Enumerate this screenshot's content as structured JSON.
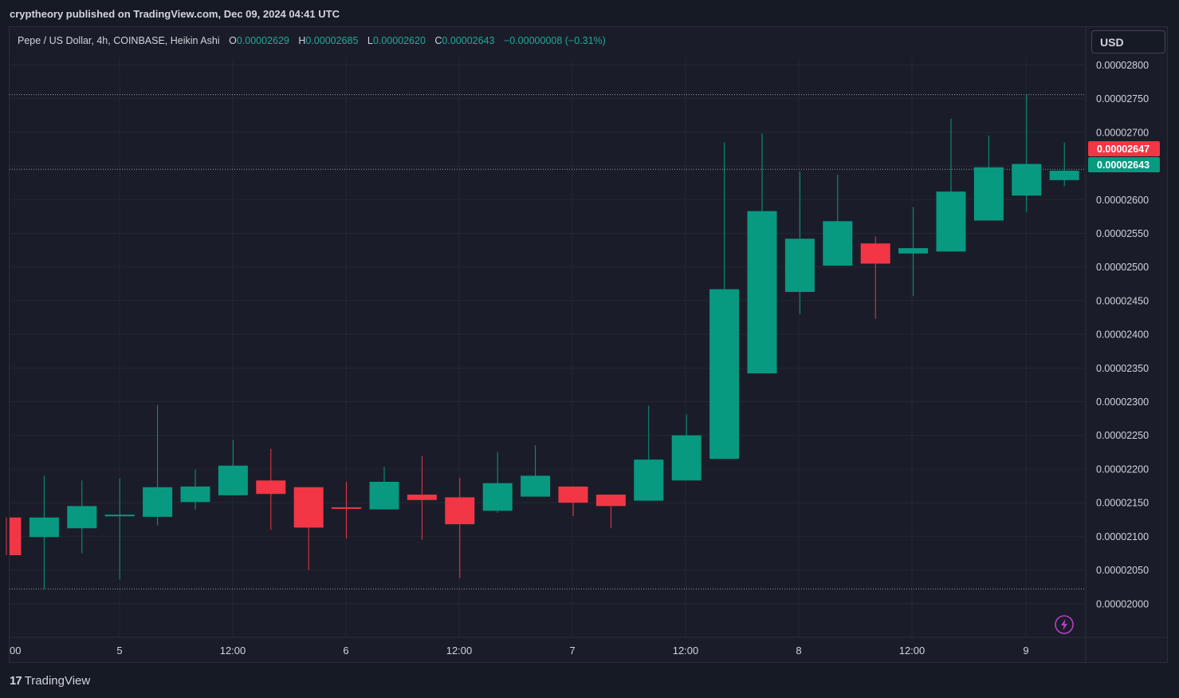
{
  "header": {
    "publisher_line": "cryptheory published on TradingView.com, Dec 09, 2024 04:41 UTC"
  },
  "legend": {
    "symbol": "Pepe / US Dollar, 4h, COINBASE, Heikin Ashi",
    "open_label": "O",
    "open_value": "0.00002629",
    "high_label": "H",
    "high_value": "0.00002685",
    "low_label": "L",
    "low_value": "0.00002620",
    "close_label": "C",
    "close_value": "0.00002643",
    "change": "−0.00000008 (−0.31%)"
  },
  "currency_button": {
    "label": "USD"
  },
  "price_tags": {
    "last_price": "0.00002647",
    "last_price_color": "#f23645",
    "close_price": "0.00002643",
    "close_price_color": "#089981"
  },
  "footer": {
    "brand": "TradingView",
    "logo_icon": "tradingview-logo-icon"
  },
  "colors": {
    "up": "#089981",
    "down": "#f23645",
    "bg": "#1a1d29",
    "grid": "#242833"
  },
  "chart_data": {
    "type": "candlestick",
    "y_axis_labels": [
      "0.00002800",
      "0.00002750",
      "0.00002700",
      "0.00002650",
      "0.00002600",
      "0.00002550",
      "0.00002500",
      "0.00002450",
      "0.00002400",
      "0.00002350",
      "0.00002300",
      "0.00002250",
      "0.00002200",
      "0.00002150",
      "0.00002100",
      "0.00002050",
      "0.00002000"
    ],
    "x_axis_labels": [
      "00",
      "5",
      "12:00",
      "6",
      "12:00",
      "7",
      "12:00",
      "8",
      "12:00",
      "9"
    ],
    "ylim": [
      1.95e-05,
      2.81e-05
    ],
    "dotted_levels": [
      2.756e-05,
      2.645e-05,
      2.022e-05
    ],
    "candles": [
      {
        "o": 2.128e-05,
        "h": 2.128e-05,
        "l": 2.072e-05,
        "c": 2.072e-05
      },
      {
        "o": 2.099e-05,
        "h": 2.19e-05,
        "l": 2.022e-05,
        "c": 2.128e-05
      },
      {
        "o": 2.112e-05,
        "h": 2.183e-05,
        "l": 2.075e-05,
        "c": 2.145e-05
      },
      {
        "o": 2.13e-05,
        "h": 2.186e-05,
        "l": 2.036e-05,
        "c": 2.132e-05
      },
      {
        "o": 2.129e-05,
        "h": 2.295e-05,
        "l": 2.116e-05,
        "c": 2.173e-05
      },
      {
        "o": 2.151e-05,
        "h": 2.199e-05,
        "l": 2.14e-05,
        "c": 2.174e-05
      },
      {
        "o": 2.161e-05,
        "h": 2.243e-05,
        "l": 2.161e-05,
        "c": 2.205e-05
      },
      {
        "o": 2.183e-05,
        "h": 2.23e-05,
        "l": 2.11e-05,
        "c": 2.163e-05
      },
      {
        "o": 2.173e-05,
        "h": 2.173e-05,
        "l": 2.05e-05,
        "c": 2.113e-05
      },
      {
        "o": 2.143e-05,
        "h": 2.181e-05,
        "l": 2.097e-05,
        "c": 2.141e-05
      },
      {
        "o": 2.14e-05,
        "h": 2.203e-05,
        "l": 2.14e-05,
        "c": 2.181e-05
      },
      {
        "o": 2.162e-05,
        "h": 2.219e-05,
        "l": 2.095e-05,
        "c": 2.154e-05
      },
      {
        "o": 2.158e-05,
        "h": 2.187e-05,
        "l": 2.038e-05,
        "c": 2.118e-05
      },
      {
        "o": 2.138e-05,
        "h": 2.225e-05,
        "l": 2.135e-05,
        "c": 2.179e-05
      },
      {
        "o": 2.159e-05,
        "h": 2.235e-05,
        "l": 2.159e-05,
        "c": 2.19e-05
      },
      {
        "o": 2.174e-05,
        "h": 2.174e-05,
        "l": 2.13e-05,
        "c": 2.15e-05
      },
      {
        "o": 2.162e-05,
        "h": 2.162e-05,
        "l": 2.112e-05,
        "c": 2.145e-05
      },
      {
        "o": 2.153e-05,
        "h": 2.294e-05,
        "l": 2.153e-05,
        "c": 2.214e-05
      },
      {
        "o": 2.183e-05,
        "h": 2.281e-05,
        "l": 2.183e-05,
        "c": 2.25e-05
      },
      {
        "o": 2.215e-05,
        "h": 2.685e-05,
        "l": 2.215e-05,
        "c": 2.467e-05
      },
      {
        "o": 2.342e-05,
        "h": 2.698e-05,
        "l": 2.342e-05,
        "c": 2.583e-05
      },
      {
        "o": 2.463e-05,
        "h": 2.642e-05,
        "l": 2.43e-05,
        "c": 2.542e-05
      },
      {
        "o": 2.502e-05,
        "h": 2.637e-05,
        "l": 2.502e-05,
        "c": 2.568e-05
      },
      {
        "o": 2.535e-05,
        "h": 2.545e-05,
        "l": 2.423e-05,
        "c": 2.505e-05
      },
      {
        "o": 2.52e-05,
        "h": 2.589e-05,
        "l": 2.457e-05,
        "c": 2.528e-05
      },
      {
        "o": 2.523e-05,
        "h": 2.72e-05,
        "l": 2.523e-05,
        "c": 2.612e-05
      },
      {
        "o": 2.569e-05,
        "h": 2.695e-05,
        "l": 2.569e-05,
        "c": 2.648e-05
      },
      {
        "o": 2.606e-05,
        "h": 2.756e-05,
        "l": 2.582e-05,
        "c": 2.653e-05
      },
      {
        "o": 2.629e-05,
        "h": 2.685e-05,
        "l": 2.62e-05,
        "c": 2.643e-05
      }
    ]
  }
}
